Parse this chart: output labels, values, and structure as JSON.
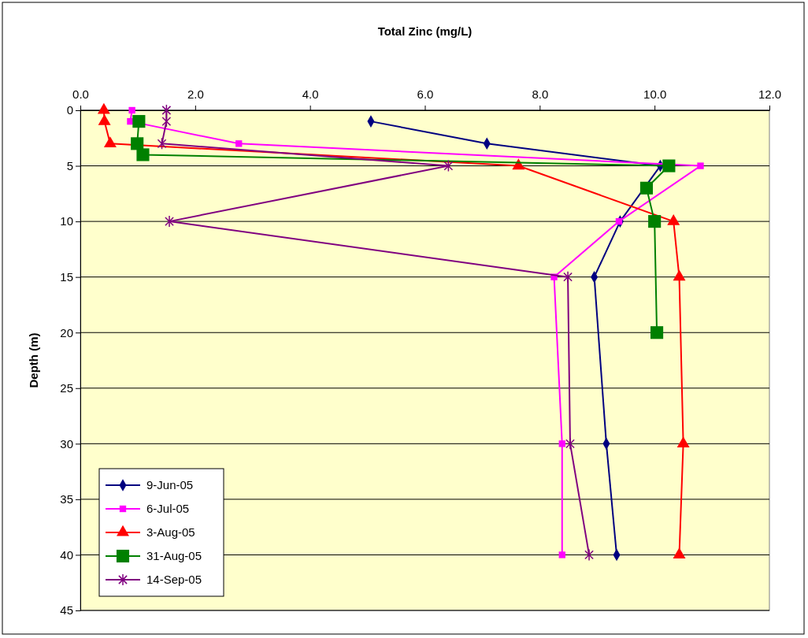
{
  "chart_data": {
    "type": "line",
    "title": "Total Zinc (mg/L)",
    "ylabel": "Depth (m)",
    "xlim": [
      0,
      12
    ],
    "xticks": [
      {
        "value": 0,
        "label": "0.0"
      },
      {
        "value": 2,
        "label": "2.0"
      },
      {
        "value": 4,
        "label": "4.0"
      },
      {
        "value": 6,
        "label": "6.0"
      },
      {
        "value": 8,
        "label": "8.0"
      },
      {
        "value": 10,
        "label": "10.0"
      },
      {
        "value": 12,
        "label": "12.0"
      }
    ],
    "ylim": [
      45,
      0
    ],
    "yticks": [
      0,
      5,
      10,
      15,
      20,
      25,
      30,
      35,
      40,
      45
    ],
    "grid": "y",
    "legend": "bottom left",
    "series": [
      {
        "name": "9-Jun-05",
        "color": "#000080",
        "marker": "diamond",
        "x": [
          5.06,
          7.08,
          10.1,
          9.4,
          8.95,
          9.16,
          9.34
        ],
        "values": [
          1,
          3,
          5,
          10,
          15,
          30,
          40
        ]
      },
      {
        "name": "6-Jul-05",
        "color": "#ff00ff",
        "marker": "square",
        "x": [
          0.9,
          0.87,
          2.76,
          10.8,
          9.38,
          8.25,
          8.39,
          8.39
        ],
        "values": [
          0,
          1,
          3,
          5,
          10,
          15,
          30,
          40
        ]
      },
      {
        "name": "3-Aug-05",
        "color": "#ff0000",
        "marker": "triangle",
        "x": [
          0.41,
          0.42,
          0.52,
          7.63,
          10.33,
          10.43,
          10.5,
          10.43
        ],
        "values": [
          0,
          1,
          3,
          5,
          10,
          15,
          30,
          40
        ]
      },
      {
        "name": "31-Aug-05",
        "color": "#008000",
        "marker": "square",
        "x": [
          1.02,
          0.99,
          1.09,
          10.25,
          9.86,
          10.0,
          10.04
        ],
        "values": [
          1,
          3,
          4,
          5,
          7,
          10,
          20
        ]
      },
      {
        "name": "14-Sep-05",
        "color": "#800080",
        "marker": "cross",
        "x": [
          1.5,
          1.5,
          1.42,
          6.41,
          1.55,
          8.49,
          8.53,
          8.86
        ],
        "values": [
          0,
          1,
          3,
          5,
          10,
          15,
          30,
          40
        ]
      }
    ]
  }
}
